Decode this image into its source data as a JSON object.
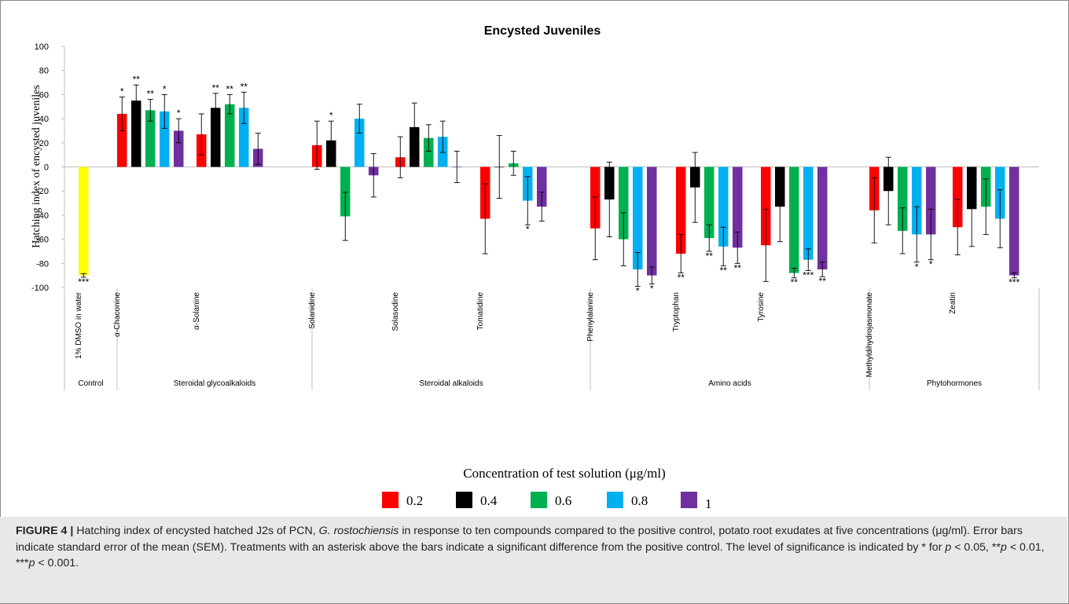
{
  "chart_data": {
    "type": "bar",
    "title": "Encysted Juveniles",
    "ylabel": "Hatching index of encysted juveniles",
    "ylim": [
      -100,
      100
    ],
    "yticks": [
      100,
      80,
      60,
      40,
      20,
      0,
      -20,
      -40,
      -60,
      -80,
      -100
    ],
    "legend_title": "Concentration of test solution (μg/ml)",
    "legend_position": "bottom-center",
    "series_colors": {
      "0.2": "#ff0000",
      "0.4": "#000000",
      "0.6": "#00b050",
      "0.8": "#00b0f0",
      "1": "#7030a0"
    },
    "control_color": "#ffff00",
    "series": [
      {
        "name": "0.2",
        "color": "#ff0000"
      },
      {
        "name": "0.4",
        "color": "#000000"
      },
      {
        "name": "0.6",
        "color": "#00b050"
      },
      {
        "name": "0.8",
        "color": "#00b0f0"
      },
      {
        "name": "1",
        "color": "#7030a0"
      }
    ],
    "groups": [
      {
        "name": "Control",
        "categories": [
          {
            "name": "1% DMSO in water",
            "control": true,
            "bars": [
              {
                "value": -90,
                "err": 1.5,
                "sig": "***"
              }
            ]
          }
        ]
      },
      {
        "name": "Steroidal glycoalkaloids",
        "categories": [
          {
            "name": "α-Chaconine",
            "bars": [
              {
                "value": 44,
                "err": 14,
                "sig": "*"
              },
              {
                "value": 55,
                "err": 13,
                "sig": "**"
              },
              {
                "value": 47,
                "err": 9,
                "sig": "**"
              },
              {
                "value": 46,
                "err": 14,
                "sig": "*"
              },
              {
                "value": 30,
                "err": 10,
                "sig": "*"
              }
            ]
          },
          {
            "name": "α-Solanine",
            "bars": [
              {
                "value": 27,
                "err": 17,
                "sig": ""
              },
              {
                "value": 49,
                "err": 12,
                "sig": "**"
              },
              {
                "value": 52,
                "err": 8,
                "sig": "**"
              },
              {
                "value": 49,
                "err": 13,
                "sig": "**"
              },
              {
                "value": 15,
                "err": 13,
                "sig": ""
              }
            ]
          }
        ]
      },
      {
        "name": "Steroidal alkaloids",
        "categories": [
          {
            "name": "Solanidine",
            "bars": [
              {
                "value": 18,
                "err": 20,
                "sig": ""
              },
              {
                "value": 22,
                "err": 16,
                "sig": "*"
              },
              {
                "value": -41,
                "err": 20,
                "sig": ""
              },
              {
                "value": 40,
                "err": 12,
                "sig": ""
              },
              {
                "value": -7,
                "err": 18,
                "sig": ""
              }
            ]
          },
          {
            "name": "Solasodine",
            "bars": [
              {
                "value": 8,
                "err": 17,
                "sig": ""
              },
              {
                "value": 33,
                "err": 20,
                "sig": ""
              },
              {
                "value": 24,
                "err": 11,
                "sig": ""
              },
              {
                "value": 25,
                "err": 13,
                "sig": ""
              },
              {
                "value": 0,
                "err": 13,
                "sig": ""
              }
            ]
          },
          {
            "name": "Tomatidine",
            "bars": [
              {
                "value": -43,
                "err": 29,
                "sig": ""
              },
              {
                "value": 0,
                "err": 26,
                "sig": ""
              },
              {
                "value": 3,
                "err": 10,
                "sig": ""
              },
              {
                "value": -28,
                "err": 20,
                "sig": "*"
              },
              {
                "value": -33,
                "err": 12,
                "sig": ""
              }
            ]
          }
        ]
      },
      {
        "name": "Amino acids",
        "categories": [
          {
            "name": "Phenylalanine",
            "bars": [
              {
                "value": -51,
                "err": 26,
                "sig": ""
              },
              {
                "value": -27,
                "err": 31,
                "sig": ""
              },
              {
                "value": -60,
                "err": 22,
                "sig": ""
              },
              {
                "value": -85,
                "err": 14,
                "sig": "*"
              },
              {
                "value": -90,
                "err": 7,
                "sig": "*"
              }
            ]
          },
          {
            "name": "Tryptophan",
            "bars": [
              {
                "value": -72,
                "err": 16,
                "sig": "**"
              },
              {
                "value": -17,
                "err": 29,
                "sig": ""
              },
              {
                "value": -59,
                "err": 11,
                "sig": "**"
              },
              {
                "value": -66,
                "err": 16,
                "sig": "**"
              },
              {
                "value": -67,
                "err": 13,
                "sig": "**"
              }
            ]
          },
          {
            "name": "Tyrosine",
            "bars": [
              {
                "value": -65,
                "err": 30,
                "sig": ""
              },
              {
                "value": -33,
                "err": 29,
                "sig": ""
              },
              {
                "value": -88,
                "err": 4,
                "sig": "**"
              },
              {
                "value": -77,
                "err": 9,
                "sig": "***"
              },
              {
                "value": -85,
                "err": 6,
                "sig": "**"
              }
            ]
          }
        ]
      },
      {
        "name": "Phytohormones",
        "categories": [
          {
            "name": "Methyldihydrojasmonate",
            "bars": [
              {
                "value": -36,
                "err": 27,
                "sig": ""
              },
              {
                "value": -20,
                "err": 28,
                "sig": ""
              },
              {
                "value": -53,
                "err": 19,
                "sig": ""
              },
              {
                "value": -56,
                "err": 23,
                "sig": "*"
              },
              {
                "value": -56,
                "err": 21,
                "sig": "*"
              }
            ]
          },
          {
            "name": "Zeatin",
            "bars": [
              {
                "value": -50,
                "err": 23,
                "sig": ""
              },
              {
                "value": -35,
                "err": 31,
                "sig": ""
              },
              {
                "value": -33,
                "err": 23,
                "sig": ""
              },
              {
                "value": -43,
                "err": 24,
                "sig": ""
              },
              {
                "value": -90,
                "err": 2,
                "sig": "***"
              }
            ]
          }
        ]
      }
    ]
  },
  "caption": {
    "label": "FIGURE 4 |",
    "text_parts": [
      {
        "t": " Hatching index of encysted hatched J2s of PCN, ",
        "i": false
      },
      {
        "t": "G. rostochiensis",
        "i": true
      },
      {
        "t": " in response to ten compounds compared to the positive control, potato root exudates at five concentrations (μg/ml). Error bars indicate standard error of the mean (SEM). Treatments with an asterisk above the bars indicate a significant difference from the positive control. The level of significance is indicated by * for ",
        "i": false
      },
      {
        "t": "p",
        "i": true
      },
      {
        "t": " < 0.05, **",
        "i": false
      },
      {
        "t": "p",
        "i": true
      },
      {
        "t": " < 0.01, ***",
        "i": false
      },
      {
        "t": "p",
        "i": true
      },
      {
        "t": " < 0.001.",
        "i": false
      }
    ]
  }
}
